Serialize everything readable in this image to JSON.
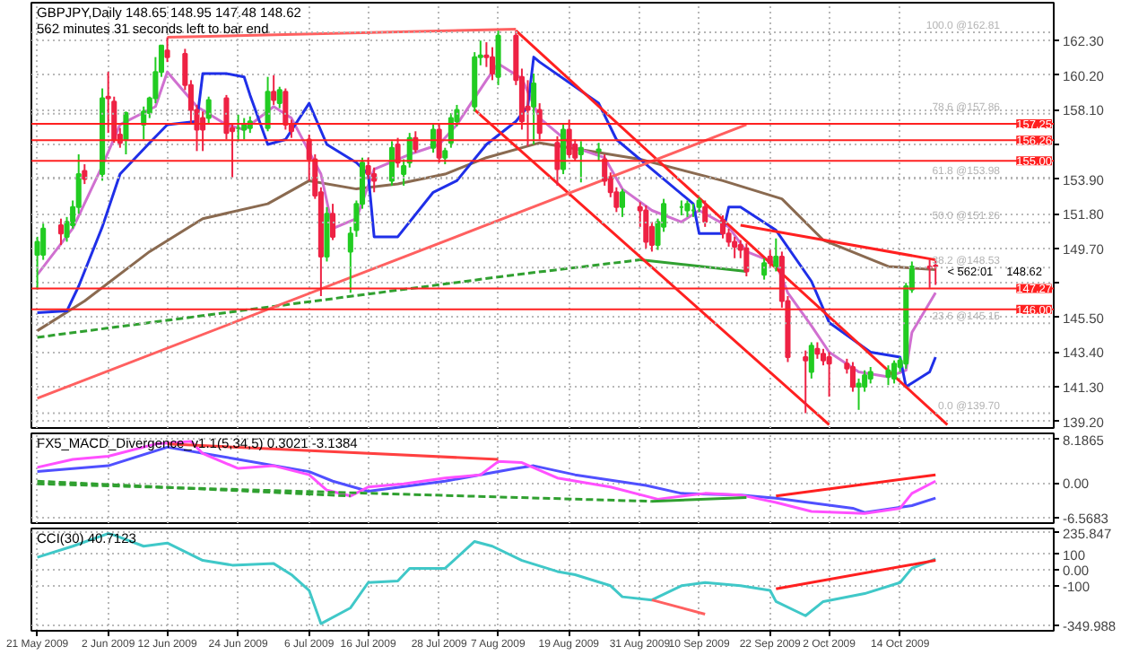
{
  "chart_data": [
    {
      "type": "candlestick",
      "title": "GBPJPY,Daily 148.65 148.95 147.48 148.62",
      "subtitle": "562 minutes 31 seconds left to bar end",
      "x": [
        "2009-05-21",
        "2009-05-22",
        "2009-05-25",
        "2009-05-26",
        "2009-05-27",
        "2009-05-28",
        "2009-05-29",
        "2009-06-01",
        "2009-06-02",
        "2009-06-03",
        "2009-06-04",
        "2009-06-05",
        "2009-06-08",
        "2009-06-09",
        "2009-06-10",
        "2009-06-11",
        "2009-06-12",
        "2009-06-15",
        "2009-06-16",
        "2009-06-17",
        "2009-06-18",
        "2009-06-19",
        "2009-06-22",
        "2009-06-23",
        "2009-06-24",
        "2009-06-25",
        "2009-06-26",
        "2009-06-29",
        "2009-06-30",
        "2009-07-01",
        "2009-07-02",
        "2009-07-03",
        "2009-07-06",
        "2009-07-07",
        "2009-07-08",
        "2009-07-09",
        "2009-07-10",
        "2009-07-13",
        "2009-07-14",
        "2009-07-15",
        "2009-07-16",
        "2009-07-17",
        "2009-07-20",
        "2009-07-21",
        "2009-07-22",
        "2009-07-23",
        "2009-07-24",
        "2009-07-27",
        "2009-07-28",
        "2009-07-29",
        "2009-07-30",
        "2009-07-31",
        "2009-08-03",
        "2009-08-04",
        "2009-08-05",
        "2009-08-06",
        "2009-08-07",
        "2009-08-10",
        "2009-08-11",
        "2009-08-12",
        "2009-08-13",
        "2009-08-14",
        "2009-08-17",
        "2009-08-18",
        "2009-08-19",
        "2009-08-20",
        "2009-08-21",
        "2009-08-24",
        "2009-08-25",
        "2009-08-26",
        "2009-08-27",
        "2009-08-28",
        "2009-08-31",
        "2009-09-01",
        "2009-09-02",
        "2009-09-03",
        "2009-09-04",
        "2009-09-07",
        "2009-09-08",
        "2009-09-09",
        "2009-09-10",
        "2009-09-11",
        "2009-09-14",
        "2009-09-15",
        "2009-09-16",
        "2009-09-17",
        "2009-09-18",
        "2009-09-21",
        "2009-09-22",
        "2009-09-23",
        "2009-09-24",
        "2009-09-25",
        "2009-09-28",
        "2009-09-29",
        "2009-09-30",
        "2009-10-01",
        "2009-10-02",
        "2009-10-05",
        "2009-10-06",
        "2009-10-07",
        "2009-10-08",
        "2009-10-09",
        "2009-10-12",
        "2009-10-13",
        "2009-10-14",
        "2009-10-15",
        "2009-10-16",
        "2009-10-19",
        "2009-10-20"
      ],
      "ohlc": [
        [
          149.3,
          150.4,
          147.2,
          150.1
        ],
        [
          149.3,
          151.2,
          149.0,
          150.9
        ],
        [
          151.1,
          151.5,
          149.9,
          150.6
        ],
        [
          150.4,
          151.6,
          150.1,
          151.3
        ],
        [
          151.1,
          152.6,
          150.9,
          152.2
        ],
        [
          152.2,
          155.4,
          151.8,
          154.2
        ],
        [
          154.4,
          154.8,
          153.6,
          153.9
        ],
        [
          154.2,
          159.4,
          153.8,
          158.8
        ],
        [
          158.9,
          160.4,
          156.7,
          158.8
        ],
        [
          158.6,
          158.9,
          156.1,
          156.3
        ],
        [
          156.6,
          157.0,
          155.8,
          156.1
        ],
        [
          156.3,
          158.0,
          155.4,
          157.9
        ],
        [
          157.2,
          158.3,
          156.3,
          158.0
        ],
        [
          157.9,
          158.9,
          157.6,
          158.8
        ],
        [
          158.8,
          161.3,
          158.5,
          160.4
        ],
        [
          160.4,
          162.0,
          160.1,
          162.0
        ],
        [
          161.7,
          162.5,
          161.0,
          161.3
        ],
        [
          161.5,
          161.8,
          159.3,
          159.6
        ],
        [
          159.6,
          159.9,
          157.2,
          158.1
        ],
        [
          158.1,
          158.4,
          155.6,
          156.9
        ],
        [
          157.6,
          158.0,
          155.6,
          156.9
        ],
        [
          157.6,
          158.9,
          157.2,
          158.7
        ],
        [
          158.8,
          159.0,
          156.3,
          156.7
        ],
        [
          157.0,
          157.3,
          154.0,
          156.8
        ],
        [
          157.0,
          157.8,
          156.2,
          157.0
        ],
        [
          156.9,
          157.6,
          156.3,
          157.2
        ],
        [
          157.0,
          157.7,
          156.7,
          157.4
        ],
        [
          157.0,
          160.1,
          156.8,
          159.2
        ],
        [
          159.2,
          160.2,
          158.4,
          158.7
        ],
        [
          158.5,
          159.5,
          158.2,
          159.3
        ],
        [
          159.2,
          159.4,
          156.9,
          157.2
        ],
        [
          157.2,
          157.5,
          156.4,
          156.8
        ],
        [
          156.3,
          156.6,
          153.8,
          155.1
        ],
        [
          155.1,
          155.4,
          152.7,
          152.9
        ],
        [
          153.1,
          153.4,
          146.8,
          149.2
        ],
        [
          149.2,
          152.2,
          148.9,
          151.8
        ],
        [
          151.8,
          152.4,
          150.2,
          150.4
        ],
        [
          149.5,
          151.0,
          147.0,
          150.6
        ],
        [
          150.8,
          152.6,
          150.4,
          152.4
        ],
        [
          152.4,
          155.2,
          152.1,
          154.9
        ],
        [
          154.7,
          155.2,
          153.9,
          154.2
        ],
        [
          154.2,
          154.6,
          153.1,
          153.8
        ],
        [
          153.8,
          156.2,
          153.5,
          155.8
        ],
        [
          156.0,
          156.4,
          154.6,
          154.9
        ],
        [
          154.2,
          155.1,
          153.5,
          154.7
        ],
        [
          154.9,
          156.7,
          154.6,
          156.4
        ],
        [
          156.4,
          156.8,
          155.5,
          155.7
        ],
        [
          155.8,
          157.2,
          155.5,
          156.9
        ],
        [
          156.9,
          157.2,
          154.9,
          155.2
        ],
        [
          155.2,
          155.8,
          154.8,
          155.6
        ],
        [
          156.1,
          157.9,
          155.8,
          157.6
        ],
        [
          157.4,
          158.4,
          157.1,
          158.1
        ],
        [
          158.3,
          161.6,
          158.0,
          161.3
        ],
        [
          161.3,
          162.3,
          160.8,
          161.4
        ],
        [
          161.4,
          162.2,
          160.7,
          161.3
        ],
        [
          161.3,
          161.9,
          159.9,
          160.3
        ],
        [
          160.1,
          162.9,
          159.6,
          162.6
        ],
        [
          162.6,
          162.9,
          159.6,
          159.9
        ],
        [
          160.1,
          160.6,
          156.9,
          157.4
        ],
        [
          158.3,
          159.9,
          155.9,
          158.1
        ],
        [
          158.3,
          160.3,
          156.0,
          159.7
        ],
        [
          158.1,
          158.5,
          156.3,
          156.7
        ],
        [
          156.1,
          156.5,
          153.5,
          154.5
        ],
        [
          154.5,
          157.3,
          154.2,
          156.9
        ],
        [
          156.9,
          157.5,
          155.2,
          155.4
        ],
        [
          156.0,
          156.3,
          155.0,
          155.2
        ],
        [
          155.4,
          156.2,
          153.7,
          155.8
        ],
        [
          155.6,
          156.1,
          155.0,
          155.7
        ],
        [
          155.1,
          155.4,
          153.5,
          153.8
        ],
        [
          154.0,
          154.3,
          152.8,
          153.1
        ],
        [
          153.1,
          153.4,
          151.9,
          152.2
        ],
        [
          152.2,
          153.3,
          151.6,
          153.1
        ],
        [
          152.2,
          152.5,
          151.0,
          152.0
        ],
        [
          152.0,
          152.3,
          149.7,
          150.1
        ],
        [
          151.0,
          151.3,
          149.5,
          149.9
        ],
        [
          149.9,
          151.5,
          149.6,
          151.3
        ],
        [
          151.0,
          152.7,
          150.7,
          152.4
        ],
        [
          152.2,
          152.6,
          151.7,
          152.2
        ],
        [
          152.0,
          152.6,
          151.6,
          152.4
        ],
        [
          152.0,
          152.4,
          151.6,
          152.0
        ],
        [
          152.2,
          152.8,
          151.9,
          152.6
        ],
        [
          152.2,
          152.6,
          151.0,
          151.3
        ],
        [
          151.4,
          151.7,
          150.3,
          150.6
        ],
        [
          150.6,
          150.9,
          149.8,
          150.1
        ],
        [
          150.1,
          150.4,
          149.1,
          149.8
        ],
        [
          149.9,
          150.2,
          149.1,
          149.6
        ],
        [
          149.7,
          150.0,
          148.0,
          148.3
        ],
        [
          148.1,
          149.1,
          147.8,
          148.8
        ],
        [
          149.2,
          149.6,
          148.5,
          148.8
        ],
        [
          148.6,
          150.3,
          148.3,
          149.2
        ],
        [
          149.2,
          149.5,
          146.1,
          146.5
        ],
        [
          146.5,
          146.8,
          142.8,
          143.1
        ],
        [
          143.1,
          143.5,
          139.7,
          142.9
        ],
        [
          142.2,
          144.0,
          141.8,
          143.8
        ],
        [
          143.6,
          144.0,
          143.0,
          143.3
        ],
        [
          143.3,
          143.6,
          142.6,
          142.9
        ],
        [
          143.1,
          143.4,
          140.7,
          142.7
        ],
        [
          142.7,
          143.0,
          142.1,
          142.4
        ],
        [
          142.5,
          142.8,
          141.0,
          141.3
        ],
        [
          141.3,
          141.8,
          139.9,
          141.5
        ],
        [
          141.3,
          142.3,
          141.0,
          142.0
        ],
        [
          141.8,
          142.5,
          141.5,
          142.2
        ],
        [
          141.9,
          142.6,
          141.4,
          142.3
        ],
        [
          141.8,
          142.9,
          141.5,
          142.7
        ],
        [
          142.5,
          143.1,
          142.2,
          142.9
        ],
        [
          142.7,
          147.6,
          142.4,
          147.4
        ],
        [
          147.2,
          148.9,
          147.0,
          148.6
        ],
        [
          148.6,
          149.0,
          147.3,
          148.5
        ],
        [
          148.65,
          148.95,
          147.48,
          148.62
        ]
      ],
      "colors": [
        "#22cc22",
        "#22cc22",
        "#ee2244",
        "#22cc22",
        "#22cc22",
        "#22cc22",
        "#ee2244",
        "#22cc22",
        "#ee2244",
        "#ee2244",
        "#ee2244",
        "#22cc22",
        "#22cc22",
        "#22cc22",
        "#22cc22",
        "#22cc22",
        "#ee2244",
        "#ee2244",
        "#ee2244",
        "#ee2244",
        "#ee2244",
        "#22cc22",
        "#ee2244",
        "#ee2244",
        "#22cc22",
        "#22cc22",
        "#22cc22",
        "#22cc22",
        "#ee2244",
        "#22cc22",
        "#ee2244",
        "#ee2244",
        "#ee2244",
        "#ee2244",
        "#ee2244",
        "#22cc22",
        "#ee2244",
        "#22cc22",
        "#22cc22",
        "#22cc22",
        "#ee2244",
        "#ee2244",
        "#22cc22",
        "#ee2244",
        "#22cc22",
        "#22cc22",
        "#ee2244",
        "#22cc22",
        "#ee2244",
        "#22cc22",
        "#22cc22",
        "#22cc22",
        "#22cc22",
        "#22cc22",
        "#ee2244",
        "#ee2244",
        "#22cc22",
        "#ee2244",
        "#ee2244",
        "#ee2244",
        "#22cc22",
        "#ee2244",
        "#ee2244",
        "#22cc22",
        "#ee2244",
        "#ee2244",
        "#22cc22",
        "#22cc22",
        "#ee2244",
        "#ee2244",
        "#ee2244",
        "#22cc22",
        "#ee2244",
        "#ee2244",
        "#ee2244",
        "#22cc22",
        "#22cc22",
        "#22cc22",
        "#22cc22",
        "#22cc22",
        "#22cc22",
        "#ee2244",
        "#ee2244",
        "#ee2244",
        "#ee2244",
        "#ee2244",
        "#ee2244",
        "#22cc22",
        "#ee2244",
        "#22cc22",
        "#ee2244",
        "#ee2244",
        "#ee2244",
        "#22cc22",
        "#ee2244",
        "#ee2244",
        "#ee2244",
        "#ee2244",
        "#ee2244",
        "#22cc22",
        "#22cc22",
        "#22cc22",
        "#22cc22",
        "#22cc22",
        "#22cc22",
        "#22cc22",
        "#22cc22",
        "#ee2244",
        "#ee2244"
      ],
      "series": [
        {
          "type": "line",
          "color": "#8a6a50",
          "x": [
            "2009-05-21",
            "2009-05-29",
            "2009-06-09",
            "2009-06-18",
            "2009-06-29",
            "2009-07-06",
            "2009-07-14",
            "2009-07-21",
            "2009-07-29",
            "2009-08-05",
            "2009-08-14",
            "2009-08-31",
            "2009-09-14",
            "2009-09-24",
            "2009-10-01",
            "2009-10-12",
            "2009-10-20"
          ],
          "values": [
            144.7,
            146.5,
            149.5,
            151.5,
            152.4,
            153.8,
            153.3,
            153.6,
            154.2,
            155.2,
            156.1,
            155.1,
            153.8,
            152.7,
            150.2,
            148.6,
            148.4
          ]
        },
        {
          "type": "line",
          "color": "#d070d0",
          "x": [
            "2009-05-21",
            "2009-05-27",
            "2009-06-01",
            "2009-06-04",
            "2009-06-10",
            "2009-06-12",
            "2009-06-17",
            "2009-06-22",
            "2009-06-25",
            "2009-06-30",
            "2009-07-03",
            "2009-07-08",
            "2009-07-10",
            "2009-07-14",
            "2009-07-17",
            "2009-07-23",
            "2009-07-28",
            "2009-07-31",
            "2009-08-05",
            "2009-08-07",
            "2009-08-11",
            "2009-08-14",
            "2009-08-20",
            "2009-08-25",
            "2009-08-28",
            "2009-09-02",
            "2009-09-07",
            "2009-09-10",
            "2009-09-15",
            "2009-09-18",
            "2009-09-23",
            "2009-09-25",
            "2009-09-29",
            "2009-10-02",
            "2009-10-07",
            "2009-10-12",
            "2009-10-15",
            "2009-10-16",
            "2009-10-20"
          ],
          "values": [
            148.1,
            150.9,
            154.7,
            157.2,
            158.3,
            160.4,
            158.3,
            157.2,
            156.9,
            158.3,
            157.6,
            154.2,
            150.9,
            151.5,
            154.5,
            155.4,
            156.0,
            157.2,
            159.9,
            160.9,
            160.0,
            157.6,
            155.8,
            155.2,
            153.3,
            152.0,
            151.3,
            152.0,
            151.0,
            149.5,
            148.8,
            147.0,
            145.0,
            143.4,
            142.2,
            141.9,
            142.3,
            144.6,
            147.0
          ]
        },
        {
          "type": "line",
          "color": "#1f2fe8",
          "x": [
            "2009-05-21",
            "2009-05-26",
            "2009-05-28",
            "2009-06-01",
            "2009-06-04",
            "2009-06-09",
            "2009-06-12",
            "2009-06-17",
            "2009-06-18",
            "2009-06-22",
            "2009-06-25",
            "2009-06-26",
            "2009-06-29",
            "2009-07-02",
            "2009-07-06",
            "2009-07-09",
            "2009-07-14",
            "2009-07-16",
            "2009-07-17",
            "2009-07-21",
            "2009-07-27",
            "2009-07-31",
            "2009-08-05",
            "2009-08-10",
            "2009-08-12",
            "2009-08-13",
            "2009-08-14",
            "2009-08-24",
            "2009-08-27",
            "2009-09-02",
            "2009-09-08",
            "2009-09-09",
            "2009-09-10",
            "2009-09-14",
            "2009-09-15",
            "2009-09-17",
            "2009-09-23",
            "2009-09-29",
            "2009-10-02",
            "2009-10-09",
            "2009-10-14",
            "2009-10-15",
            "2009-10-19",
            "2009-10-20"
          ],
          "values": [
            145.8,
            145.9,
            147.4,
            151.0,
            154.2,
            156.1,
            157.2,
            157.4,
            160.3,
            160.3,
            160.1,
            159.0,
            156.0,
            156.3,
            158.5,
            156.0,
            154.9,
            154.2,
            150.4,
            150.4,
            153.1,
            153.8,
            156.0,
            157.4,
            158.3,
            161.3,
            161.0,
            158.5,
            156.3,
            154.5,
            152.7,
            152.4,
            150.6,
            150.6,
            152.2,
            152.2,
            150.8,
            147.7,
            145.2,
            143.4,
            143.1,
            141.3,
            142.2,
            143.1
          ]
        },
        {
          "type": "line",
          "color": "#30a030",
          "line_style": "dashed",
          "x": [
            "2009-05-21",
            "2009-08-10",
            "2009-08-31"
          ],
          "values": [
            144.3,
            148.1,
            149.0
          ]
        },
        {
          "type": "line",
          "color": "#30a030",
          "x": [
            "2009-08-31",
            "2009-09-18"
          ],
          "values": [
            149.0,
            148.3
          ]
        },
        {
          "type": "line",
          "color": "#ff6060",
          "x": [
            "2009-06-12",
            "2009-08-10"
          ],
          "values": [
            162.5,
            163.0
          ]
        },
        {
          "type": "line",
          "color": "#ff2020",
          "x": [
            "2009-08-10",
            "2009-10-22"
          ],
          "values": [
            162.9,
            139.0
          ]
        },
        {
          "type": "line",
          "color": "#ff2020",
          "x": [
            "2009-08-03",
            "2009-10-02"
          ],
          "values": [
            158.1,
            139.0
          ]
        },
        {
          "type": "line",
          "color": "#ff6060",
          "x": [
            "2009-05-21",
            "2009-09-18"
          ],
          "values": [
            140.6,
            157.2
          ]
        },
        {
          "type": "line",
          "color": "#ff2020",
          "x": [
            "2009-09-17",
            "2009-10-20"
          ],
          "values": [
            151.1,
            149.0
          ]
        }
      ],
      "ref_lines": [
        {
          "axis": "y",
          "value": 157.25,
          "label": "157.25",
          "color": "#ff2020"
        },
        {
          "axis": "y",
          "value": 156.26,
          "label": "156.26",
          "color": "#ff2020"
        },
        {
          "axis": "y",
          "value": 155.0,
          "label": "155.00",
          "color": "#ff2020"
        },
        {
          "axis": "y",
          "value": 147.27,
          "label": "147.27",
          "color": "#ff2020"
        },
        {
          "axis": "y",
          "value": 146.0,
          "label": "146.00",
          "color": "#ff2020"
        },
        {
          "axis": "y",
          "value": 162.81,
          "label": "100.0 @162.81",
          "color": "#b4b4b4",
          "line_style": "dotted"
        },
        {
          "axis": "y",
          "value": 157.86,
          "label": "78.6 @157.86",
          "color": "#b4b4b4",
          "line_style": "dotted"
        },
        {
          "axis": "y",
          "value": 153.98,
          "label": "61.8 @153.98",
          "color": "#b4b4b4",
          "line_style": "dotted"
        },
        {
          "axis": "y",
          "value": 151.26,
          "label": "50.0 @151.26",
          "color": "#b4b4b4",
          "line_style": "dotted"
        },
        {
          "axis": "y",
          "value": 148.53,
          "label": "38.2 @148.53",
          "color": "#b4b4b4",
          "line_style": "dotted"
        },
        {
          "axis": "y",
          "value": 145.15,
          "label": "23.6 @145.15",
          "color": "#b4b4b4",
          "line_style": "dotted"
        },
        {
          "axis": "y",
          "value": 139.7,
          "label": "0.0 @139.70",
          "color": "#b4b4b4",
          "line_style": "dotted"
        }
      ],
      "annotations": [
        {
          "text": "< 562:01",
          "x": "2009-10-22",
          "y": 148.62
        },
        {
          "text": "148.62",
          "x": "2009-11-01",
          "y": 148.62
        }
      ],
      "xlim": [
        "2009-05-20",
        "2009-11-09"
      ],
      "ylim": [
        138.8,
        164.6
      ],
      "xticks": [
        {
          "value": "2009-05-21",
          "label": null
        },
        {
          "value": "2009-06-02",
          "label": null
        },
        {
          "value": "2009-06-12",
          "label": null
        },
        {
          "value": "2009-06-24",
          "label": null
        },
        {
          "value": "2009-07-06",
          "label": null
        },
        {
          "value": "2009-07-16",
          "label": null
        },
        {
          "value": "2009-07-28",
          "label": null
        },
        {
          "value": "2009-08-07",
          "label": null
        },
        {
          "value": "2009-08-19",
          "label": null
        },
        {
          "value": "2009-08-31",
          "label": null
        },
        {
          "value": "2009-09-10",
          "label": null
        },
        {
          "value": "2009-09-22",
          "label": null
        },
        {
          "value": "2009-10-02",
          "label": null
        },
        {
          "value": "2009-10-14",
          "label": null
        }
      ],
      "yticks": [
        {
          "value": 162.3,
          "label": "162.30"
        },
        {
          "value": 160.2,
          "label": "160.20"
        },
        {
          "value": 158.1,
          "label": "158.10"
        },
        {
          "value": 156.0,
          "label": null
        },
        {
          "value": 153.9,
          "label": "153.90"
        },
        {
          "value": 151.8,
          "label": "151.80"
        },
        {
          "value": 149.7,
          "label": "149.70"
        },
        {
          "value": 147.6,
          "label": null
        },
        {
          "value": 145.5,
          "label": "145.50"
        },
        {
          "value": 143.4,
          "label": "143.40"
        },
        {
          "value": 141.3,
          "label": "141.30"
        },
        {
          "value": 139.2,
          "label": "139.20"
        }
      ],
      "grid": true,
      "tick_labels": "y"
    },
    {
      "type": "line",
      "title": "FX5_MACD_Divergence_v1.1(5,34,5) 0.3021 -3.1384",
      "series": [
        {
          "color": "#5050ff",
          "x": [
            "2009-05-21",
            "2009-06-02",
            "2009-06-12",
            "2009-06-24",
            "2009-07-06",
            "2009-07-10",
            "2009-07-16",
            "2009-07-29",
            "2009-08-10",
            "2009-08-13",
            "2009-08-20",
            "2009-09-01",
            "2009-09-07",
            "2009-09-17",
            "2009-09-23",
            "2009-10-06",
            "2009-10-08",
            "2009-10-16",
            "2009-10-20"
          ],
          "values": [
            2.1,
            3.2,
            6.7,
            4.4,
            2.1,
            0.3,
            -1.6,
            0.3,
            2.7,
            3.2,
            1.5,
            -0.5,
            -2.0,
            -2.3,
            -2.9,
            -4.8,
            -5.6,
            -4.3,
            -2.9
          ]
        },
        {
          "color": "#ff50ff",
          "x": [
            "2009-05-21",
            "2009-05-27",
            "2009-06-02",
            "2009-06-10",
            "2009-06-16",
            "2009-06-18",
            "2009-06-24",
            "2009-06-30",
            "2009-07-06",
            "2009-07-09",
            "2009-07-13",
            "2009-07-16",
            "2009-07-22",
            "2009-07-29",
            "2009-08-04",
            "2009-08-07",
            "2009-08-11",
            "2009-08-17",
            "2009-08-26",
            "2009-09-03",
            "2009-09-11",
            "2009-09-17",
            "2009-09-23",
            "2009-09-29",
            "2009-10-08",
            "2009-10-14",
            "2009-10-16",
            "2009-10-20"
          ],
          "values": [
            2.9,
            4.4,
            5.0,
            7.3,
            7.8,
            5.5,
            2.7,
            3.2,
            1.5,
            -1.4,
            -2.5,
            -0.8,
            -0.2,
            0.9,
            1.5,
            4.0,
            3.8,
            0.9,
            -0.8,
            -3.1,
            -2.0,
            -2.3,
            -3.7,
            -5.4,
            -5.8,
            -4.8,
            -2.0,
            0.3
          ]
        },
        {
          "color": "#ff4040",
          "x": [
            "2009-06-12",
            "2009-08-07"
          ],
          "values": [
            7.3,
            4.4
          ]
        },
        {
          "color": "#ff2020",
          "x": [
            "2009-09-23",
            "2009-10-20"
          ],
          "values": [
            -2.5,
            1.5
          ]
        },
        {
          "color": "#30a030",
          "line_style": "dashed",
          "x": [
            "2009-05-21",
            "2009-07-13"
          ],
          "values": [
            0.3,
            -2.5
          ]
        },
        {
          "color": "#30a030",
          "line_style": "dashed",
          "x": [
            "2009-05-21",
            "2009-09-02"
          ],
          "values": [
            -0.2,
            -3.5
          ]
        },
        {
          "color": "#30a030",
          "x": [
            "2009-09-02",
            "2009-09-18"
          ],
          "values": [
            -3.5,
            -2.8
          ]
        }
      ],
      "xlim": [
        "2009-05-20",
        "2009-11-09"
      ],
      "ylim": [
        -7.6,
        9.3
      ],
      "xticks": [
        {
          "value": "2009-05-21",
          "label": null
        },
        {
          "value": "2009-06-02",
          "label": null
        },
        {
          "value": "2009-06-12",
          "label": null
        },
        {
          "value": "2009-06-24",
          "label": null
        },
        {
          "value": "2009-07-06",
          "label": null
        },
        {
          "value": "2009-07-16",
          "label": null
        },
        {
          "value": "2009-07-28",
          "label": null
        },
        {
          "value": "2009-08-07",
          "label": null
        },
        {
          "value": "2009-08-19",
          "label": null
        },
        {
          "value": "2009-08-31",
          "label": null
        },
        {
          "value": "2009-09-10",
          "label": null
        },
        {
          "value": "2009-09-22",
          "label": null
        },
        {
          "value": "2009-10-02",
          "label": null
        },
        {
          "value": "2009-10-14",
          "label": null
        }
      ],
      "yticks": [
        8.1865,
        {
          "value": 0,
          "label": "0.00"
        },
        -6.5683
      ],
      "grid": true,
      "tick_labels": "y"
    },
    {
      "type": "line",
      "title": "CCI(30) 40.7123",
      "series": [
        {
          "color": "#40c8c8",
          "x": [
            "2009-05-21",
            "2009-05-27",
            "2009-06-02",
            "2009-06-03",
            "2009-06-08",
            "2009-06-12",
            "2009-06-18",
            "2009-06-23",
            "2009-06-30",
            "2009-07-03",
            "2009-07-06",
            "2009-07-08",
            "2009-07-13",
            "2009-07-16",
            "2009-07-21",
            "2009-07-23",
            "2009-07-29",
            "2009-08-03",
            "2009-08-06",
            "2009-08-11",
            "2009-08-17",
            "2009-08-20",
            "2009-08-26",
            "2009-08-28",
            "2009-09-02",
            "2009-09-07",
            "2009-09-11",
            "2009-09-17",
            "2009-09-22",
            "2009-09-23",
            "2009-09-28",
            "2009-10-01",
            "2009-10-08",
            "2009-10-14",
            "2009-10-16",
            "2009-10-20"
          ],
          "values": [
            80,
            150,
            230,
            220,
            150,
            170,
            60,
            30,
            40,
            -30,
            -130,
            -340,
            -240,
            -80,
            -70,
            10,
            10,
            180,
            150,
            60,
            -10,
            -30,
            -100,
            -170,
            -190,
            -100,
            -80,
            -100,
            -130,
            -200,
            -290,
            -200,
            -150,
            -80,
            10,
            70
          ]
        },
        {
          "color": "#ff6060",
          "x": [
            "2009-09-02",
            "2009-09-11"
          ],
          "values": [
            -190,
            -280
          ]
        },
        {
          "color": "#ff2020",
          "x": [
            "2009-09-23",
            "2009-10-20"
          ],
          "values": [
            -120,
            60
          ]
        }
      ],
      "xlim": [
        "2009-05-20",
        "2009-11-09"
      ],
      "ylim": [
        -385,
        262
      ],
      "xticks": [
        {
          "value": "2009-05-21",
          "label": "21 May 2009"
        },
        {
          "value": "2009-06-02",
          "label": "2 Jun 2009"
        },
        {
          "value": "2009-06-12",
          "label": "12 Jun 2009"
        },
        {
          "value": "2009-06-24",
          "label": "24 Jun 2009"
        },
        {
          "value": "2009-07-06",
          "label": "6 Jul 2009"
        },
        {
          "value": "2009-07-16",
          "label": "16 Jul 2009"
        },
        {
          "value": "2009-07-28",
          "label": "28 Jul 2009"
        },
        {
          "value": "2009-08-07",
          "label": "7 Aug 2009"
        },
        {
          "value": "2009-08-19",
          "label": "19 Aug 2009"
        },
        {
          "value": "2009-08-31",
          "label": "31 Aug 2009"
        },
        {
          "value": "2009-09-10",
          "label": "10 Sep 2009"
        },
        {
          "value": "2009-09-22",
          "label": "22 Sep 2009"
        },
        {
          "value": "2009-10-02",
          "label": "2 Oct 2009"
        },
        {
          "value": "2009-10-14",
          "label": "14 Oct 2009"
        }
      ],
      "yticks": [
        235.847,
        100,
        {
          "value": 0,
          "label": "0.00"
        },
        -100,
        -349.988
      ],
      "grid": true
    }
  ]
}
